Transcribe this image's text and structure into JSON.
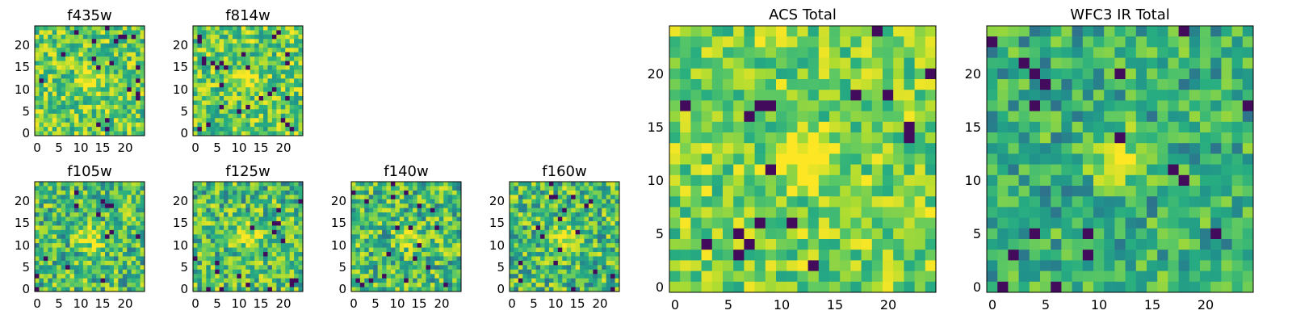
{
  "chart_data": [
    {
      "type": "heatmap",
      "title": "f435w",
      "x_ticks": [
        "0",
        "5",
        "10",
        "15",
        "20"
      ],
      "y_ticks": [
        "0",
        "5",
        "10",
        "15",
        "20"
      ],
      "grid_size": 25,
      "colormap": "viridis",
      "seed": 3,
      "style": "noise"
    },
    {
      "type": "heatmap",
      "title": "f814w",
      "x_ticks": [
        "0",
        "5",
        "10",
        "15",
        "20"
      ],
      "y_ticks": [
        "0",
        "5",
        "10",
        "15",
        "20"
      ],
      "grid_size": 25,
      "colormap": "viridis",
      "seed": 7,
      "style": "noise"
    },
    {
      "type": "heatmap",
      "title": "f105w",
      "x_ticks": [
        "0",
        "5",
        "10",
        "15",
        "20"
      ],
      "y_ticks": [
        "0",
        "5",
        "10",
        "15",
        "20"
      ],
      "grid_size": 25,
      "colormap": "viridis",
      "seed": 11,
      "style": "smooth"
    },
    {
      "type": "heatmap",
      "title": "f125w",
      "x_ticks": [
        "0",
        "5",
        "10",
        "15",
        "20"
      ],
      "y_ticks": [
        "0",
        "5",
        "10",
        "15",
        "20"
      ],
      "grid_size": 25,
      "colormap": "viridis",
      "seed": 13,
      "style": "smooth"
    },
    {
      "type": "heatmap",
      "title": "f140w",
      "x_ticks": [
        "0",
        "5",
        "10",
        "15",
        "20"
      ],
      "y_ticks": [
        "0",
        "5",
        "10",
        "15",
        "20"
      ],
      "grid_size": 25,
      "colormap": "viridis",
      "seed": 17,
      "style": "smooth"
    },
    {
      "type": "heatmap",
      "title": "f160w",
      "x_ticks": [
        "0",
        "5",
        "10",
        "15",
        "20"
      ],
      "y_ticks": [
        "0",
        "5",
        "10",
        "15",
        "20"
      ],
      "grid_size": 25,
      "colormap": "viridis",
      "seed": 19,
      "style": "smooth"
    },
    {
      "type": "heatmap",
      "title": "ACS Total",
      "x_ticks": [
        "0",
        "5",
        "10",
        "15",
        "20"
      ],
      "y_ticks": [
        "0",
        "5",
        "10",
        "15",
        "20"
      ],
      "grid_size": 25,
      "colormap": "viridis",
      "seed": 23,
      "style": "bright"
    },
    {
      "type": "heatmap",
      "title": "WFC3 IR Total",
      "x_ticks": [
        "0",
        "5",
        "10",
        "15",
        "20"
      ],
      "y_ticks": [
        "0",
        "5",
        "10",
        "15",
        "20"
      ],
      "grid_size": 25,
      "colormap": "viridis",
      "seed": 29,
      "style": "dim"
    }
  ]
}
